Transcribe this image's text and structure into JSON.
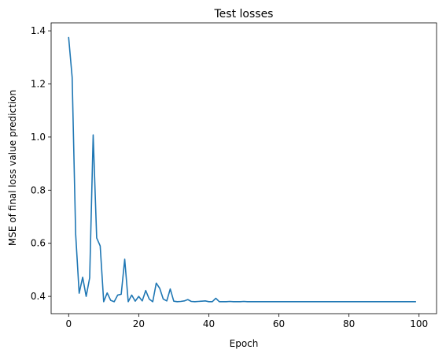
{
  "chart_data": {
    "type": "line",
    "title": "Test losses",
    "xlabel": "Epoch",
    "ylabel": "MSE of final loss value prediction",
    "xlim": [
      -5,
      105
    ],
    "ylim": [
      0.335,
      1.43
    ],
    "xticks": [
      0,
      20,
      40,
      60,
      80,
      100
    ],
    "yticks": [
      0.4,
      0.6,
      0.8,
      1.0,
      1.2,
      1.4
    ],
    "ytick_labels": [
      "0.4",
      "0.6",
      "0.8",
      "1.0",
      "1.2",
      "1.4"
    ],
    "grid": false,
    "colors": {
      "line": "#1f77b4"
    },
    "series": [
      {
        "x": [
          0,
          1,
          2,
          3,
          4,
          5,
          6,
          7,
          8,
          9,
          10,
          11,
          12,
          13,
          14,
          15,
          16,
          17,
          18,
          19,
          20,
          21,
          22,
          23,
          24,
          25,
          26,
          27,
          28,
          29,
          30,
          31,
          32,
          33,
          34,
          35,
          36,
          37,
          38,
          39,
          40,
          41,
          42,
          43,
          44,
          45,
          46,
          47,
          48,
          49,
          50,
          51,
          52,
          53,
          54,
          55,
          56,
          57,
          58,
          59,
          60,
          61,
          62,
          63,
          64,
          65,
          66,
          67,
          68,
          69,
          70,
          71,
          72,
          73,
          74,
          75,
          76,
          77,
          78,
          79,
          80,
          81,
          82,
          83,
          84,
          85,
          86,
          87,
          88,
          89,
          90,
          91,
          92,
          93,
          94,
          95,
          96,
          97,
          98,
          99
        ],
        "y": [
          1.375,
          1.225,
          0.635,
          0.412,
          0.472,
          0.4,
          0.47,
          1.008,
          0.62,
          0.59,
          0.38,
          0.413,
          0.385,
          0.38,
          0.405,
          0.408,
          0.54,
          0.38,
          0.405,
          0.382,
          0.4,
          0.383,
          0.422,
          0.39,
          0.38,
          0.45,
          0.43,
          0.39,
          0.383,
          0.428,
          0.382,
          0.38,
          0.381,
          0.383,
          0.388,
          0.381,
          0.38,
          0.381,
          0.382,
          0.383,
          0.38,
          0.38,
          0.393,
          0.38,
          0.38,
          0.38,
          0.381,
          0.38,
          0.38,
          0.38,
          0.381,
          0.38,
          0.38,
          0.38,
          0.38,
          0.38,
          0.38,
          0.38,
          0.38,
          0.38,
          0.38,
          0.38,
          0.38,
          0.38,
          0.38,
          0.38,
          0.38,
          0.38,
          0.38,
          0.38,
          0.38,
          0.38,
          0.38,
          0.38,
          0.38,
          0.38,
          0.38,
          0.38,
          0.38,
          0.38,
          0.38,
          0.38,
          0.38,
          0.38,
          0.38,
          0.38,
          0.38,
          0.38,
          0.38,
          0.38,
          0.38,
          0.38,
          0.38,
          0.38,
          0.38,
          0.38,
          0.38,
          0.38,
          0.38,
          0.38
        ]
      }
    ]
  }
}
